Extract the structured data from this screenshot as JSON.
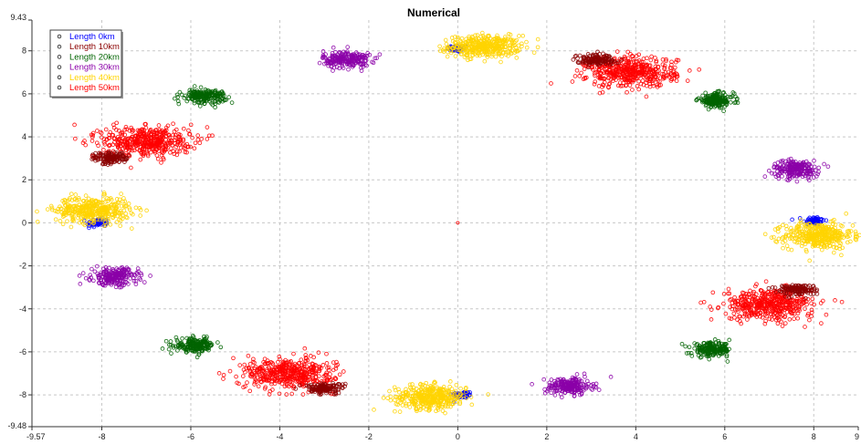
{
  "chart_data": {
    "type": "scatter",
    "title": "Numerical",
    "xlabel": "",
    "ylabel": "",
    "xlim": [
      -9.57,
      9.0
    ],
    "ylim": [
      -9.48,
      9.43
    ],
    "grid": true,
    "legend_position": "top-left",
    "x_tick_labels": [
      "-9.57",
      "-8",
      "-6",
      "-4",
      "-2",
      "0",
      "2",
      "4",
      "6",
      "8",
      "9"
    ],
    "y_tick_labels": [
      "9.43",
      "8",
      "6",
      "4",
      "2",
      "0",
      "-2",
      "-4",
      "-6",
      "-8",
      "-9.48"
    ],
    "series": [
      {
        "name": "Length 0km",
        "color": "#0000ff",
        "clusters": [
          {
            "x": 0.0,
            "y": 8.1,
            "sx": 0.12,
            "sy": 0.08
          },
          {
            "x": 8.0,
            "y": 0.1,
            "sx": 0.12,
            "sy": 0.1
          },
          {
            "x": 0.1,
            "y": -8.0,
            "sx": 0.12,
            "sy": 0.08
          },
          {
            "x": -8.1,
            "y": 0.0,
            "sx": 0.12,
            "sy": 0.1
          }
        ]
      },
      {
        "name": "Length 10km",
        "color": "#8b0000",
        "clusters": [
          {
            "x": 3.1,
            "y": 7.6,
            "sx": 0.22,
            "sy": 0.12
          },
          {
            "x": 7.6,
            "y": -3.1,
            "sx": 0.22,
            "sy": 0.12
          },
          {
            "x": -3.0,
            "y": -7.7,
            "sx": 0.22,
            "sy": 0.12
          },
          {
            "x": -7.8,
            "y": 3.0,
            "sx": 0.2,
            "sy": 0.14
          }
        ]
      },
      {
        "name": "Length 20km",
        "color": "#006400",
        "clusters": [
          {
            "x": 5.8,
            "y": 5.7,
            "sx": 0.2,
            "sy": 0.16
          },
          {
            "x": 5.7,
            "y": -5.9,
            "sx": 0.22,
            "sy": 0.16
          },
          {
            "x": -5.9,
            "y": -5.7,
            "sx": 0.22,
            "sy": 0.16
          },
          {
            "x": -5.7,
            "y": 5.9,
            "sx": 0.24,
            "sy": 0.15
          }
        ]
      },
      {
        "name": "Length 30km",
        "color": "#8b00a8",
        "clusters": [
          {
            "x": -2.5,
            "y": 7.6,
            "sx": 0.26,
            "sy": 0.2
          },
          {
            "x": 7.6,
            "y": 2.5,
            "sx": 0.26,
            "sy": 0.2
          },
          {
            "x": 2.5,
            "y": -7.6,
            "sx": 0.26,
            "sy": 0.2
          },
          {
            "x": -7.7,
            "y": -2.5,
            "sx": 0.26,
            "sy": 0.2
          }
        ]
      },
      {
        "name": "Length 40km",
        "color": "#ffd400",
        "clusters": [
          {
            "x": 0.6,
            "y": 8.2,
            "sx": 0.4,
            "sy": 0.25
          },
          {
            "x": 8.1,
            "y": -0.6,
            "sx": 0.38,
            "sy": 0.3
          },
          {
            "x": -0.6,
            "y": -8.1,
            "sx": 0.4,
            "sy": 0.28
          },
          {
            "x": -8.2,
            "y": 0.6,
            "sx": 0.42,
            "sy": 0.3
          }
        ]
      },
      {
        "name": "Length 50km",
        "color": "#ff0000",
        "clusters": [
          {
            "x": 3.9,
            "y": 7.0,
            "sx": 0.5,
            "sy": 0.35
          },
          {
            "x": 7.0,
            "y": -3.8,
            "sx": 0.5,
            "sy": 0.35
          },
          {
            "x": -3.8,
            "y": -7.0,
            "sx": 0.5,
            "sy": 0.35
          },
          {
            "x": -7.0,
            "y": 3.8,
            "sx": 0.5,
            "sy": 0.35
          }
        ]
      }
    ],
    "center_point": {
      "x": 0,
      "y": 0,
      "color": "#ff0000"
    }
  }
}
